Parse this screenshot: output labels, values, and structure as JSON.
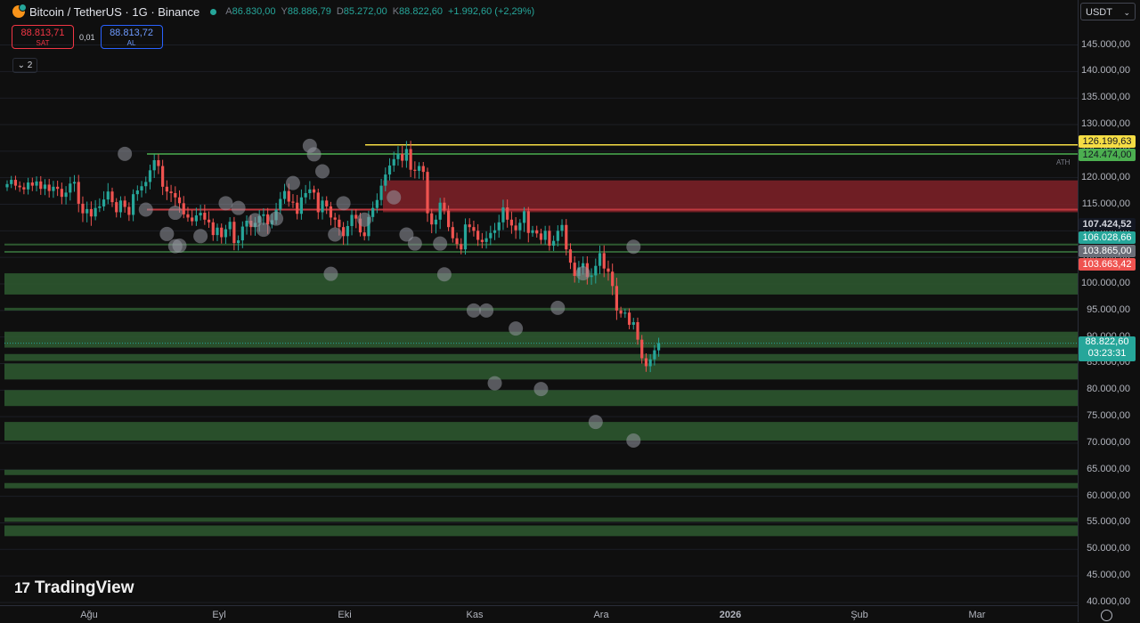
{
  "header": {
    "title": "Bitcoin / TetherUS · 1G · Binance",
    "open_label": "A",
    "open": "86.830,00",
    "high_label": "Y",
    "high": "88.886,79",
    "low_label": "D",
    "low": "85.272,00",
    "close_label": "K",
    "close": "88.822,60",
    "change": "+1.992,60 (+2,29%)"
  },
  "trade": {
    "sell_price": "88.813,71",
    "sell_label": "SAT",
    "spread": "0,01",
    "buy_price": "88.813,72",
    "buy_label": "AL"
  },
  "collapse_count": "2",
  "currency": "USDT",
  "price_ticks": [
    "145.000,00",
    "140.000,00",
    "135.000,00",
    "130.000,00",
    "125.000,00",
    "120.000,00",
    "115.000,00",
    "110.000,00",
    "105.000,00",
    "100.000,00",
    "95.000,00",
    "90.000,00",
    "85.000,00",
    "80.000,00",
    "75.000,00",
    "70.000,00",
    "65.000,00",
    "60.000,00",
    "55.000,00",
    "50.000,00",
    "45.000,00",
    "40.000,00"
  ],
  "time_ticks": [
    "Ağu",
    "Eyl",
    "Eki",
    "Kas",
    "Ara",
    "2026",
    "Şub",
    "Mar"
  ],
  "price_labels": {
    "yellow": "126.199,63",
    "green_top": "124.474,00",
    "dark": "107.424,52",
    "teal": "106.028,66",
    "gray": "103.865,00",
    "red": "103.663,42",
    "last_price": "88.822,60",
    "countdown": "03:23:31"
  },
  "ath_label": "ATH",
  "logo_text": "TradingView",
  "colors": {
    "up": "#26a69a",
    "down": "#ef5350",
    "zone_green": "#2e5a30",
    "zone_red": "#7a2027",
    "yellow": "#f5dd44",
    "line_green": "#4caf50"
  },
  "chart_data": {
    "type": "candlestick",
    "symbol": "Bitcoin / TetherUS",
    "interval": "1G",
    "ylim": [
      40000,
      147000
    ],
    "horizontal_levels": [
      126199.63,
      124474,
      114000,
      107424.52,
      106028.66
    ],
    "support_zones": [
      [
        98000,
        102000
      ],
      [
        95000,
        95500
      ],
      [
        88000,
        91000
      ],
      [
        85500,
        86800
      ],
      [
        82000,
        85000
      ],
      [
        77000,
        80000
      ],
      [
        70500,
        74000
      ],
      [
        64000,
        65000
      ],
      [
        61500,
        62500
      ],
      [
        55200,
        56000
      ],
      [
        52500,
        54500
      ]
    ],
    "resistance_zone": [
      113500,
      119500
    ],
    "series": [
      {
        "name": "BTCUSDT",
        "closes": [
          118800,
          119600,
          118500,
          118200,
          117800,
          119100,
          118500,
          119300,
          117900,
          118700,
          117500,
          118300,
          117900,
          116400,
          117200,
          118900,
          119200,
          115100,
          113300,
          114100,
          112700,
          114300,
          114600,
          115900,
          117400,
          115400,
          113500,
          115700,
          114500,
          113000,
          116900,
          117600,
          118400,
          119200,
          121400,
          123300,
          122200,
          118300,
          117400,
          117100,
          116300,
          115200,
          113100,
          112500,
          111800,
          112900,
          113400,
          112100,
          111600,
          109200,
          110600,
          108800,
          110300,
          111700,
          107700,
          108200,
          110800,
          111900,
          110700,
          111500,
          112800,
          113100,
          111200,
          112000,
          114000,
          116000,
          117500,
          115500,
          115300,
          113200,
          116300,
          117100,
          117800,
          117200,
          113500,
          115700,
          114600,
          112500,
          112100,
          110700,
          109000,
          110900,
          113000,
          112300,
          109700,
          109000,
          112600,
          114300,
          115800,
          118500,
          120600,
          122300,
          123500,
          124500,
          123200,
          125400,
          121500,
          121300,
          122200,
          121100,
          113300,
          111200,
          112100,
          115300,
          113800,
          110700,
          108600,
          107500,
          106500,
          111200,
          110700,
          110000,
          108300,
          107900,
          108600,
          109600,
          110100,
          111600,
          114400,
          112100,
          111000,
          110100,
          111500,
          113700,
          109600,
          110100,
          109500,
          108300,
          110000,
          107200,
          108100,
          110000,
          111100,
          106500,
          104000,
          101500,
          103100,
          103900,
          101300,
          101600,
          103400,
          105800,
          102900,
          102300,
          99600,
          95000,
          94400,
          94600,
          92300,
          92800,
          89500,
          86000,
          84500,
          85800,
          87500,
          88822.6
        ]
      }
    ],
    "markers": [
      {
        "date_index": 28,
        "price": 124500
      },
      {
        "date_index": 33,
        "price": 114000
      },
      {
        "date_index": 38,
        "price": 109400
      },
      {
        "date_index": 40,
        "price": 113400
      },
      {
        "date_index": 40,
        "price": 107100
      },
      {
        "date_index": 41,
        "price": 107200
      },
      {
        "date_index": 46,
        "price": 109000
      },
      {
        "date_index": 52,
        "price": 115200
      },
      {
        "date_index": 55,
        "price": 114300
      },
      {
        "date_index": 59,
        "price": 112000
      },
      {
        "date_index": 61,
        "price": 110200
      },
      {
        "date_index": 64,
        "price": 112300
      },
      {
        "date_index": 68,
        "price": 119000
      },
      {
        "date_index": 72,
        "price": 126000
      },
      {
        "date_index": 73,
        "price": 124400
      },
      {
        "date_index": 75,
        "price": 121200
      },
      {
        "date_index": 77,
        "price": 101900
      },
      {
        "date_index": 78,
        "price": 109300
      },
      {
        "date_index": 80,
        "price": 115200
      },
      {
        "date_index": 85,
        "price": 112100
      },
      {
        "date_index": 92,
        "price": 116300
      },
      {
        "date_index": 95,
        "price": 109300
      },
      {
        "date_index": 97,
        "price": 107600
      },
      {
        "date_index": 104,
        "price": 101800
      },
      {
        "date_index": 111,
        "price": 95000
      },
      {
        "date_index": 103,
        "price": 107600
      },
      {
        "date_index": 114,
        "price": 95000
      },
      {
        "date_index": 116,
        "price": 81300
      },
      {
        "date_index": 121,
        "price": 91600
      },
      {
        "date_index": 127,
        "price": 80200
      },
      {
        "date_index": 131,
        "price": 95500
      },
      {
        "date_index": 137,
        "price": 102000
      },
      {
        "date_index": 140,
        "price": 74000
      },
      {
        "date_index": 149,
        "price": 107000
      },
      {
        "date_index": 149,
        "price": 70500
      }
    ]
  }
}
